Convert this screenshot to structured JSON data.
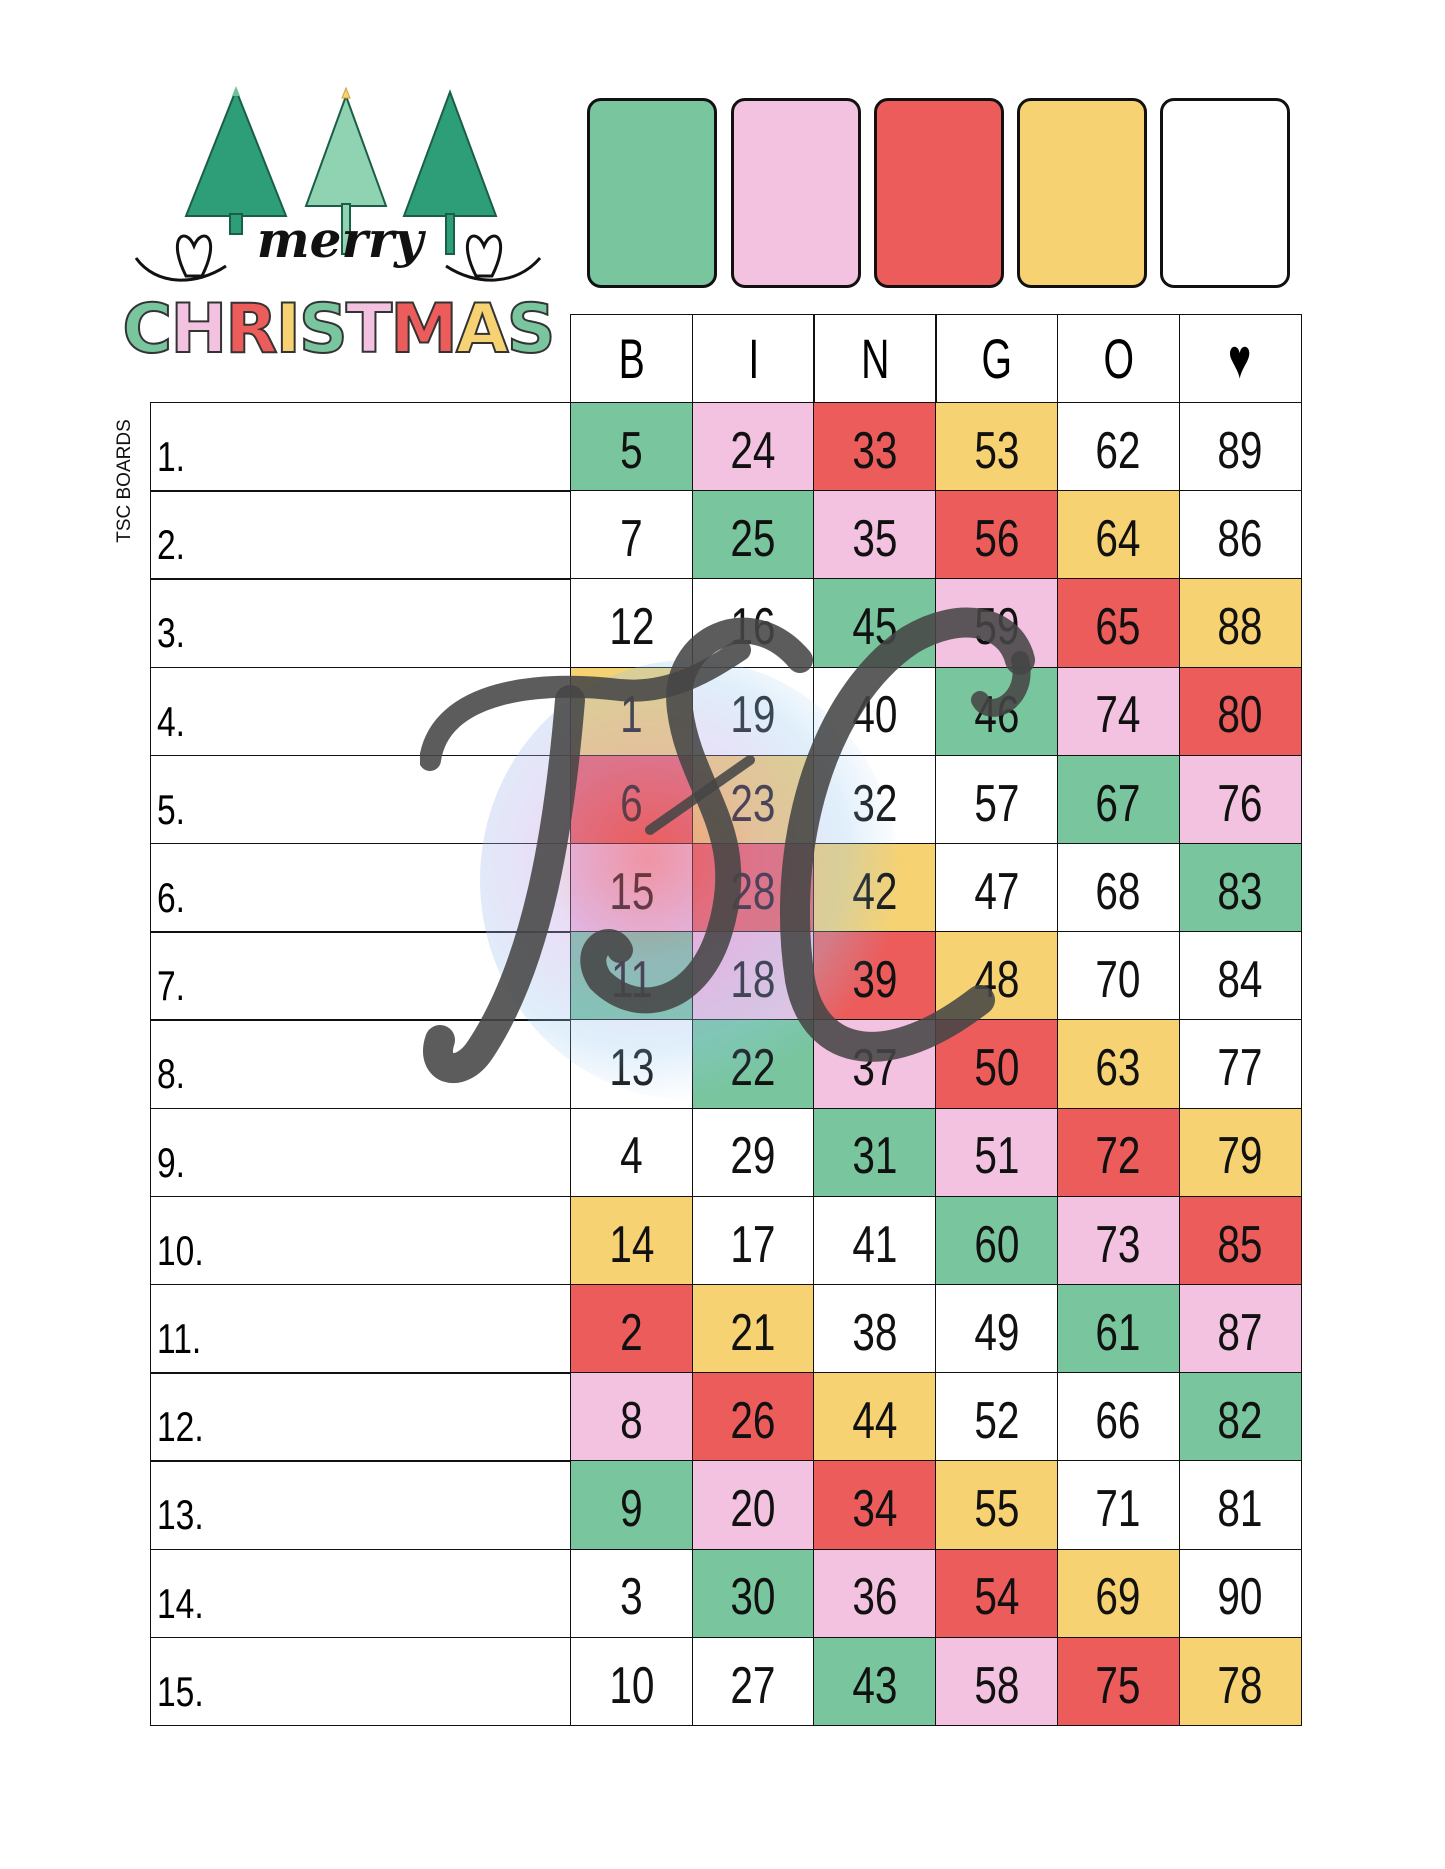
{
  "logo": {
    "line1": "merry",
    "line2": "CHRISTMAS"
  },
  "side_text": "TSC BOARDS",
  "watermark": "TSC",
  "colors": {
    "green": "#78C59E",
    "pink": "#F3C2E0",
    "red": "#EC5C5B",
    "yellow": "#F7D272",
    "white": "#FFFFFF"
  },
  "swatches": [
    "green",
    "pink",
    "red",
    "yellow",
    "white"
  ],
  "headers": [
    "B",
    "I",
    "N",
    "G",
    "O",
    "♥"
  ],
  "rows": [
    {
      "label": "1.",
      "cells": [
        [
          5,
          "green"
        ],
        [
          24,
          "pink"
        ],
        [
          33,
          "red"
        ],
        [
          53,
          "yellow"
        ],
        [
          62,
          "white"
        ],
        [
          89,
          "white"
        ]
      ]
    },
    {
      "label": "2.",
      "cells": [
        [
          7,
          "white"
        ],
        [
          25,
          "green"
        ],
        [
          35,
          "pink"
        ],
        [
          56,
          "red"
        ],
        [
          64,
          "yellow"
        ],
        [
          86,
          "white"
        ]
      ]
    },
    {
      "label": "3.",
      "cells": [
        [
          12,
          "white"
        ],
        [
          16,
          "white"
        ],
        [
          45,
          "green"
        ],
        [
          59,
          "pink"
        ],
        [
          65,
          "red"
        ],
        [
          88,
          "yellow"
        ]
      ]
    },
    {
      "label": "4.",
      "cells": [
        [
          1,
          "yellow"
        ],
        [
          19,
          "white"
        ],
        [
          40,
          "white"
        ],
        [
          46,
          "green"
        ],
        [
          74,
          "pink"
        ],
        [
          80,
          "red"
        ]
      ]
    },
    {
      "label": "5.",
      "cells": [
        [
          6,
          "red"
        ],
        [
          23,
          "yellow"
        ],
        [
          32,
          "white"
        ],
        [
          57,
          "white"
        ],
        [
          67,
          "green"
        ],
        [
          76,
          "pink"
        ]
      ]
    },
    {
      "label": "6.",
      "cells": [
        [
          15,
          "pink"
        ],
        [
          28,
          "red"
        ],
        [
          42,
          "yellow"
        ],
        [
          47,
          "white"
        ],
        [
          68,
          "white"
        ],
        [
          83,
          "green"
        ]
      ]
    },
    {
      "label": "7.",
      "cells": [
        [
          11,
          "green"
        ],
        [
          18,
          "pink"
        ],
        [
          39,
          "red"
        ],
        [
          48,
          "yellow"
        ],
        [
          70,
          "white"
        ],
        [
          84,
          "white"
        ]
      ]
    },
    {
      "label": "8.",
      "cells": [
        [
          13,
          "white"
        ],
        [
          22,
          "green"
        ],
        [
          37,
          "pink"
        ],
        [
          50,
          "red"
        ],
        [
          63,
          "yellow"
        ],
        [
          77,
          "white"
        ]
      ]
    },
    {
      "label": "9.",
      "cells": [
        [
          4,
          "white"
        ],
        [
          29,
          "white"
        ],
        [
          31,
          "green"
        ],
        [
          51,
          "pink"
        ],
        [
          72,
          "red"
        ],
        [
          79,
          "yellow"
        ]
      ]
    },
    {
      "label": "10.",
      "cells": [
        [
          14,
          "yellow"
        ],
        [
          17,
          "white"
        ],
        [
          41,
          "white"
        ],
        [
          60,
          "green"
        ],
        [
          73,
          "pink"
        ],
        [
          85,
          "red"
        ]
      ]
    },
    {
      "label": "11.",
      "cells": [
        [
          2,
          "red"
        ],
        [
          21,
          "yellow"
        ],
        [
          38,
          "white"
        ],
        [
          49,
          "white"
        ],
        [
          61,
          "green"
        ],
        [
          87,
          "pink"
        ]
      ]
    },
    {
      "label": "12.",
      "cells": [
        [
          8,
          "pink"
        ],
        [
          26,
          "red"
        ],
        [
          44,
          "yellow"
        ],
        [
          52,
          "white"
        ],
        [
          66,
          "white"
        ],
        [
          82,
          "green"
        ]
      ]
    },
    {
      "label": "13.",
      "cells": [
        [
          9,
          "green"
        ],
        [
          20,
          "pink"
        ],
        [
          34,
          "red"
        ],
        [
          55,
          "yellow"
        ],
        [
          71,
          "white"
        ],
        [
          81,
          "white"
        ]
      ]
    },
    {
      "label": "14.",
      "cells": [
        [
          3,
          "white"
        ],
        [
          30,
          "green"
        ],
        [
          36,
          "pink"
        ],
        [
          54,
          "red"
        ],
        [
          69,
          "yellow"
        ],
        [
          90,
          "white"
        ]
      ]
    },
    {
      "label": "15.",
      "cells": [
        [
          10,
          "white"
        ],
        [
          27,
          "white"
        ],
        [
          43,
          "green"
        ],
        [
          58,
          "pink"
        ],
        [
          75,
          "red"
        ],
        [
          78,
          "yellow"
        ]
      ]
    }
  ]
}
